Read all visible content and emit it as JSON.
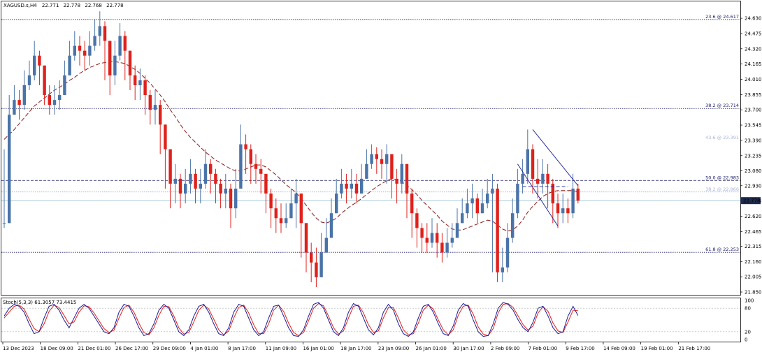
{
  "chart_data": {
    "type": "candlestick",
    "symbol_line": {
      "symbol": "XAGUSD.s,H4",
      "open": "22.771",
      "high": "22.778",
      "low": "22.768",
      "close": "22.778"
    },
    "ylim": [
      21.85,
      24.73
    ],
    "y_ticks": [
      "24.630",
      "24.475",
      "24.320",
      "24.165",
      "24.010",
      "23.855",
      "23.700",
      "23.545",
      "23.390",
      "23.235",
      "23.080",
      "22.930",
      "22.775",
      "22.620",
      "22.465",
      "22.315",
      "22.160",
      "22.005",
      "21.850"
    ],
    "x_ticks": [
      "13 Dec 2023",
      "18 Dec 09:00",
      "21 Dec 01:00",
      "26 Dec 17:00",
      "29 Dec 09:00",
      "4 Jan 01:00",
      "8 Jan 17:00",
      "11 Jan 09:00",
      "16 Jan 01:00",
      "18 Jan 17:00",
      "23 Jan 09:00",
      "26 Jan 01:00",
      "30 Jan 17:00",
      "2 Feb 09:00",
      "7 Feb 01:00",
      "9 Feb 17:00",
      "14 Feb 09:00",
      "19 Feb 01:00",
      "21 Feb 17:00"
    ],
    "current_price": "22.778",
    "fib_levels": [
      {
        "label": "23.6 @ 24.617",
        "value": 24.617,
        "style": "dotted",
        "faded": false
      },
      {
        "label": "38.2 @ 23.714",
        "value": 23.714,
        "style": "dotted",
        "faded": false
      },
      {
        "label": "43.6 @ 23.391",
        "value": 23.391,
        "style": "none",
        "faded": true
      },
      {
        "label": "50.0 @ 22.983",
        "value": 22.983,
        "style": "dashed",
        "faded": false
      },
      {
        "label": "38.2 @ 22.866",
        "value": 22.866,
        "style": "dotted",
        "faded": true
      },
      {
        "label": "61.8 @ 22.253",
        "value": 22.253,
        "style": "dotted",
        "faded": false
      }
    ],
    "closes": [
      22.55,
      23.65,
      23.8,
      23.75,
      23.95,
      24.05,
      24.25,
      24.15,
      23.85,
      23.75,
      23.8,
      23.85,
      24.05,
      24.25,
      24.35,
      24.3,
      24.25,
      24.35,
      24.45,
      24.55,
      24.4,
      24.05,
      24.25,
      24.45,
      24.3,
      24.05,
      23.95,
      24.0,
      23.85,
      23.7,
      23.75,
      23.55,
      23.3,
      22.95,
      23.0,
      22.85,
      22.95,
      23.05,
      22.9,
      22.95,
      23.15,
      23.05,
      22.95,
      22.85,
      22.9,
      22.7,
      22.9,
      23.35,
      23.3,
      23.15,
      23.1,
      23.05,
      22.85,
      22.7,
      22.6,
      22.55,
      22.6,
      22.75,
      22.85,
      22.55,
      22.25,
      22.15,
      22.0,
      22.25,
      22.4,
      22.65,
      22.85,
      22.95,
      22.9,
      22.95,
      22.85,
      23.0,
      23.15,
      23.25,
      23.2,
      23.15,
      23.25,
      23.0,
      22.95,
      23.15,
      22.85,
      22.65,
      22.5,
      22.4,
      22.35,
      22.45,
      22.35,
      22.25,
      22.35,
      22.4,
      22.55,
      22.65,
      22.75,
      22.8,
      22.65,
      22.75,
      22.85,
      22.9,
      22.05,
      22.1,
      22.4,
      22.65,
      22.95,
      23.05,
      23.3,
      23.0,
      22.95,
      23.05,
      22.95,
      22.75,
      22.65,
      22.7,
      22.65,
      22.9,
      22.778
    ],
    "highs": [
      23.3,
      23.85,
      23.95,
      23.9,
      24.1,
      24.2,
      24.4,
      24.3,
      24.1,
      23.95,
      23.95,
      24.0,
      24.2,
      24.4,
      24.5,
      24.45,
      24.4,
      24.5,
      24.62,
      24.7,
      24.6,
      24.4,
      24.4,
      24.58,
      24.5,
      24.3,
      24.15,
      24.12,
      24.05,
      23.9,
      23.9,
      23.8,
      23.55,
      23.2,
      23.15,
      23.05,
      23.1,
      23.2,
      23.1,
      23.1,
      23.3,
      23.2,
      23.1,
      23.0,
      23.05,
      22.95,
      23.1,
      23.55,
      23.45,
      23.35,
      23.25,
      23.2,
      23.05,
      22.9,
      22.8,
      22.75,
      22.75,
      22.9,
      23.0,
      22.85,
      22.55,
      22.35,
      22.3,
      22.45,
      22.6,
      22.8,
      23.0,
      23.1,
      23.05,
      23.1,
      23.05,
      23.15,
      23.3,
      23.35,
      23.32,
      23.3,
      23.35,
      23.2,
      23.1,
      23.25,
      23.1,
      22.9,
      22.7,
      22.55,
      22.55,
      22.6,
      22.55,
      22.45,
      22.5,
      22.55,
      22.7,
      22.8,
      22.9,
      22.95,
      22.85,
      22.9,
      23.0,
      23.05,
      22.95,
      22.3,
      22.55,
      22.8,
      23.1,
      23.2,
      23.5,
      23.35,
      23.2,
      23.2,
      23.15,
      23.0,
      22.85,
      22.85,
      22.8,
      23.05,
      22.95
    ],
    "lows": [
      22.5,
      22.55,
      23.65,
      23.6,
      23.7,
      23.9,
      24.0,
      23.95,
      23.75,
      23.65,
      23.65,
      23.7,
      23.85,
      24.05,
      24.2,
      24.15,
      24.1,
      24.15,
      24.3,
      24.35,
      24.0,
      23.85,
      23.95,
      24.2,
      24.0,
      23.9,
      23.8,
      23.8,
      23.65,
      23.55,
      23.55,
      23.25,
      22.9,
      22.7,
      22.75,
      22.7,
      22.75,
      22.85,
      22.75,
      22.75,
      22.9,
      22.85,
      22.75,
      22.7,
      22.7,
      22.5,
      22.6,
      22.95,
      23.05,
      22.95,
      22.95,
      22.85,
      22.65,
      22.5,
      22.45,
      22.45,
      22.5,
      22.6,
      22.5,
      22.2,
      22.05,
      21.95,
      21.9,
      22.0,
      22.25,
      22.4,
      22.65,
      22.8,
      22.75,
      22.8,
      22.75,
      22.85,
      23.0,
      23.1,
      23.05,
      23.0,
      22.95,
      22.8,
      22.75,
      22.85,
      22.6,
      22.4,
      22.3,
      22.25,
      22.25,
      22.3,
      22.2,
      22.15,
      22.2,
      22.3,
      22.45,
      22.55,
      22.6,
      22.6,
      22.55,
      22.65,
      22.7,
      22.05,
      21.95,
      21.95,
      22.05,
      22.35,
      22.6,
      22.85,
      22.95,
      22.85,
      22.8,
      22.85,
      22.7,
      22.55,
      22.5,
      22.55,
      22.55,
      22.6,
      22.75
    ],
    "ma": [
      23.4,
      23.45,
      23.5,
      23.56,
      23.62,
      23.68,
      23.74,
      23.78,
      23.82,
      23.86,
      23.9,
      23.93,
      23.96,
      24.0,
      24.03,
      24.07,
      24.1,
      24.13,
      24.15,
      24.17,
      24.18,
      24.19,
      24.19,
      24.18,
      24.17,
      24.14,
      24.11,
      24.07,
      24.02,
      23.97,
      23.91,
      23.85,
      23.78,
      23.7,
      23.63,
      23.55,
      23.48,
      23.42,
      23.37,
      23.32,
      23.27,
      23.23,
      23.19,
      23.16,
      23.13,
      23.1,
      23.08,
      23.08,
      23.1,
      23.12,
      23.14,
      23.14,
      23.12,
      23.08,
      23.04,
      22.99,
      22.94,
      22.9,
      22.86,
      22.8,
      22.73,
      22.66,
      22.6,
      22.56,
      22.55,
      22.57,
      22.6,
      22.65,
      22.69,
      22.73,
      22.76,
      22.8,
      22.84,
      22.88,
      22.92,
      22.95,
      22.98,
      23.0,
      22.99,
      22.97,
      22.93,
      22.89,
      22.84,
      22.78,
      22.73,
      22.68,
      22.63,
      22.57,
      22.53,
      22.49,
      22.48,
      22.48,
      22.5,
      22.52,
      22.54,
      22.56,
      22.58,
      22.57,
      22.53,
      22.49,
      22.47,
      22.48,
      22.52,
      22.58,
      22.66,
      22.72,
      22.77,
      22.82,
      22.85,
      22.87,
      22.88,
      22.88,
      22.88,
      22.88,
      22.87
    ],
    "channel_upper": [
      [
        105,
        23.5
      ],
      [
        114,
        22.93
      ]
    ],
    "channel_lower": [
      [
        102,
        23.15
      ],
      [
        110,
        22.52
      ]
    ],
    "channel_mid": [
      [
        103,
        22.92
      ],
      [
        112,
        22.92
      ]
    ],
    "stochastic": {
      "label": "Stoch(5,3,3) 61.3057 73.4415",
      "ylim": [
        0,
        100
      ],
      "ticks": [
        "100",
        "80",
        "20",
        "0"
      ],
      "levels": [
        80,
        20
      ],
      "main": [
        60,
        80,
        90,
        85,
        70,
        40,
        15,
        20,
        55,
        85,
        90,
        75,
        50,
        30,
        55,
        80,
        90,
        80,
        60,
        40,
        20,
        15,
        30,
        70,
        90,
        85,
        60,
        30,
        10,
        15,
        40,
        75,
        90,
        80,
        50,
        20,
        10,
        25,
        60,
        85,
        90,
        70,
        40,
        15,
        10,
        30,
        70,
        90,
        85,
        55,
        25,
        10,
        20,
        55,
        85,
        88,
        60,
        30,
        10,
        8,
        25,
        60,
        90,
        95,
        80,
        50,
        20,
        10,
        30,
        70,
        92,
        85,
        55,
        25,
        12,
        30,
        70,
        90,
        75,
        40,
        15,
        8,
        20,
        55,
        85,
        90,
        70,
        40,
        15,
        10,
        35,
        75,
        92,
        85,
        50,
        20,
        8,
        10,
        40,
        80,
        95,
        90,
        75,
        50,
        30,
        20,
        45,
        80,
        85,
        60,
        30,
        15,
        20,
        60,
        85,
        61.3
      ],
      "signal": [
        55,
        70,
        85,
        88,
        78,
        52,
        28,
        20,
        40,
        72,
        88,
        82,
        62,
        40,
        45,
        70,
        86,
        84,
        68,
        48,
        28,
        18,
        24,
        55,
        82,
        88,
        70,
        42,
        18,
        12,
        30,
        62,
        85,
        84,
        60,
        30,
        14,
        18,
        45,
        75,
        88,
        78,
        52,
        25,
        12,
        22,
        55,
        82,
        88,
        68,
        38,
        15,
        15,
        40,
        75,
        88,
        72,
        42,
        18,
        10,
        18,
        48,
        80,
        92,
        86,
        60,
        30,
        14,
        22,
        55,
        85,
        88,
        68,
        38,
        18,
        22,
        55,
        82,
        82,
        55,
        25,
        12,
        15,
        42,
        75,
        88,
        78,
        50,
        25,
        12,
        25,
        62,
        85,
        88,
        65,
        32,
        14,
        10,
        28,
        68,
        90,
        92,
        82,
        60,
        38,
        24,
        35,
        68,
        84,
        72,
        42,
        22,
        18,
        45,
        75,
        73.4
      ]
    }
  }
}
